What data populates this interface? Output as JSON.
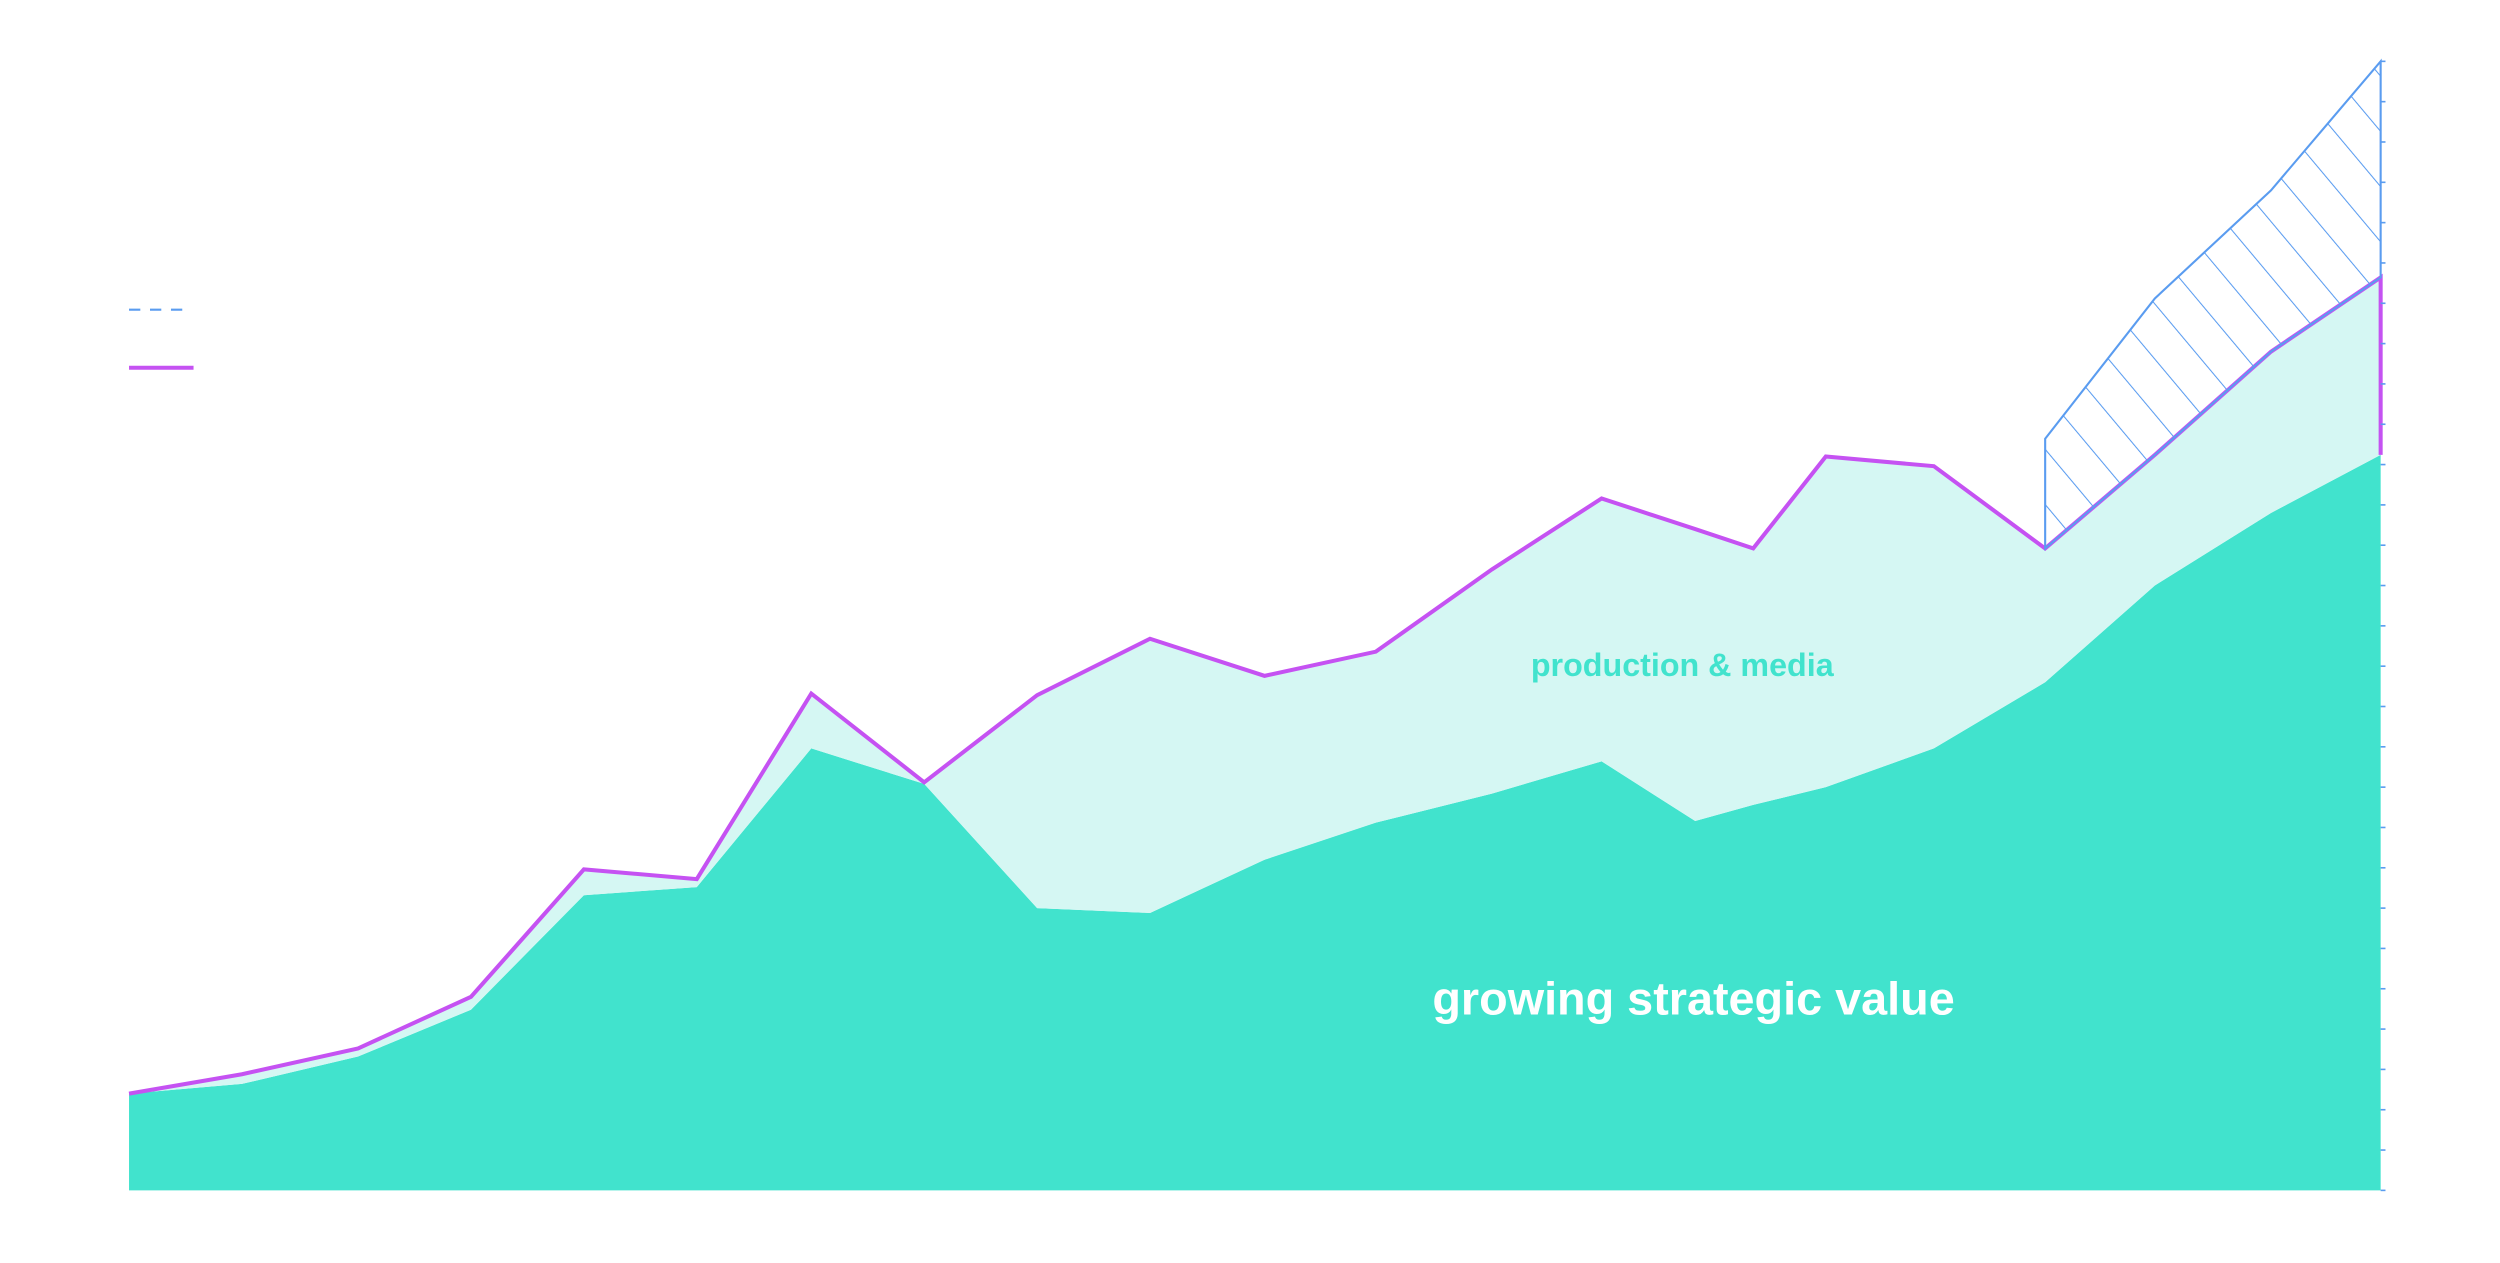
{
  "chart_data": {
    "type": "area",
    "stacked": true,
    "x": [
      80,
      150,
      222,
      292,
      362,
      432,
      503,
      573,
      643,
      713,
      784,
      853,
      925,
      993,
      1051,
      1087,
      1132,
      1199,
      1268,
      1336,
      1408,
      1476
    ],
    "xlim": [
      80,
      1476
    ],
    "ylim": [
      0,
      700
    ],
    "yticks": [
      0,
      25,
      50,
      75,
      100,
      125,
      150,
      175,
      200,
      225,
      250,
      275,
      300,
      325,
      350,
      375,
      400,
      425,
      450,
      475,
      500,
      525,
      550,
      575,
      600,
      625,
      650,
      675,
      700
    ],
    "series": [
      {
        "name": "growing strategic value",
        "color": "#41e3cd",
        "values": [
          60,
          66,
          83,
          112,
          183,
          188,
          274,
          252,
          175,
          172,
          205,
          228,
          246,
          266,
          229,
          239,
          250,
          274,
          315,
          375,
          420,
          456
        ]
      },
      {
        "name": "production & media",
        "color": "#d5f7f3",
        "line_color": "#c552f2",
        "values": [
          0,
          6,
          5,
          8,
          16,
          5,
          34,
          1,
          132,
          170,
          114,
          106,
          139,
          163,
          181,
          159,
          205,
          175,
          83,
          81,
          100,
          110
        ]
      },
      {
        "color": "#5a9cf0",
        "hatched": true,
        "values": [
          null,
          null,
          null,
          null,
          null,
          null,
          null,
          null,
          null,
          null,
          null,
          null,
          null,
          null,
          null,
          null,
          null,
          null,
          68,
          97,
          100,
          134
        ]
      }
    ]
  }
}
